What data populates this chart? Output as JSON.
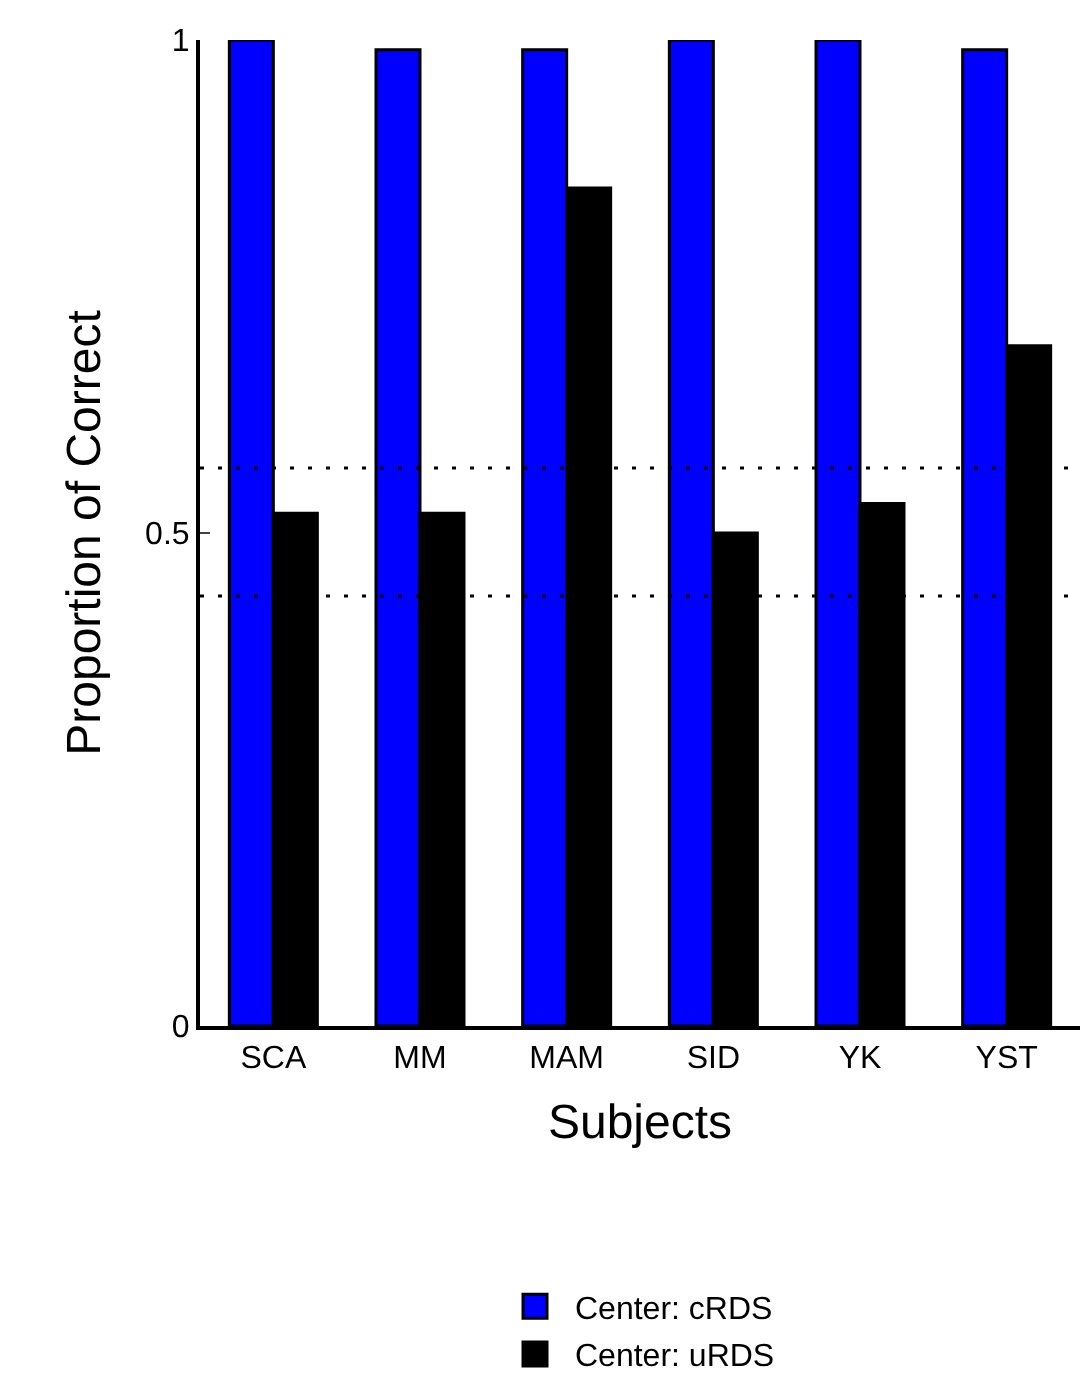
{
  "chart_data": {
    "type": "bar",
    "xlabel": "Subjects",
    "ylabel": "Proportion of Correct",
    "categories": [
      "SCA",
      "MM",
      "MAM",
      "SID",
      "YK",
      "YST"
    ],
    "series": [
      {
        "name": "Center: cRDS",
        "color": "#0000ff",
        "values": [
          1.0,
          0.99,
          0.99,
          1.0,
          1.0,
          0.99
        ]
      },
      {
        "name": "Center: uRDS",
        "color": "#000000",
        "values": [
          0.52,
          0.52,
          0.85,
          0.5,
          0.53,
          0.69
        ]
      }
    ],
    "ylim": [
      0,
      1
    ],
    "yticks": [
      0,
      0.5,
      1
    ],
    "ref_lines": [
      {
        "axis": "y",
        "value": 0.566,
        "color": "#000000",
        "line_style": "dotted"
      },
      {
        "axis": "y",
        "value": 0.436,
        "color": "#000000",
        "line_style": "dotted"
      }
    ],
    "legend": "bottom"
  }
}
